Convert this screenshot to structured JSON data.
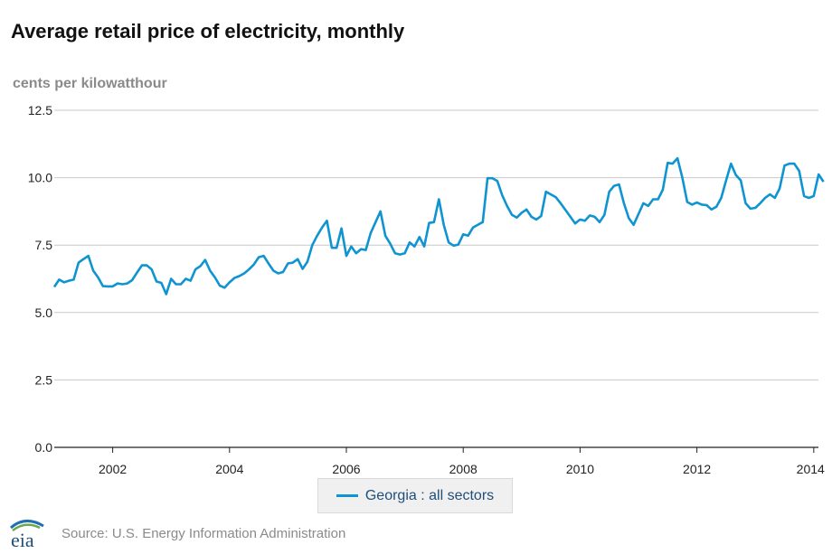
{
  "title": "Average retail price of electricity, monthly",
  "units_label": "cents per kilowatthour",
  "source": "Source: U.S. Energy Information Administration",
  "logo_text": "eia",
  "colors": {
    "series": "#0f94d2",
    "grid": "#c8c8c8",
    "axis": "#222222"
  },
  "chart_data": {
    "type": "line",
    "title": "Average retail price of electricity, monthly",
    "ylabel": "cents per kilowatthour",
    "xlabel": "",
    "ylim": [
      0,
      12.5
    ],
    "xlim": [
      2001.0,
      2014.08
    ],
    "y_ticks": [
      "0.0",
      "2.5",
      "5.0",
      "7.5",
      "10.0",
      "12.5"
    ],
    "y_tick_values": [
      0,
      2.5,
      5,
      7.5,
      10,
      12.5
    ],
    "x_ticks": [
      "2002",
      "2004",
      "2006",
      "2008",
      "2010",
      "2012",
      "2014"
    ],
    "x_tick_values": [
      2002,
      2004,
      2006,
      2008,
      2010,
      2012,
      2014
    ],
    "grid": true,
    "legend_position": "bottom-center",
    "series": [
      {
        "name": "Georgia : all sectors",
        "start": "2001-01",
        "values": [
          5.95,
          6.22,
          6.12,
          6.18,
          6.22,
          6.85,
          6.98,
          7.1,
          6.55,
          6.3,
          5.98,
          5.97,
          5.97,
          6.08,
          6.05,
          6.08,
          6.2,
          6.48,
          6.75,
          6.75,
          6.6,
          6.15,
          6.1,
          5.68,
          6.25,
          6.05,
          6.05,
          6.25,
          6.18,
          6.6,
          6.72,
          6.95,
          6.55,
          6.3,
          6.0,
          5.92,
          6.12,
          6.28,
          6.35,
          6.45,
          6.6,
          6.78,
          7.05,
          7.1,
          6.82,
          6.55,
          6.45,
          6.5,
          6.82,
          6.85,
          6.98,
          6.62,
          6.88,
          7.5,
          7.85,
          8.15,
          8.4,
          7.4,
          7.4,
          8.12,
          7.1,
          7.45,
          7.2,
          7.35,
          7.32,
          7.95,
          8.35,
          8.75,
          7.85,
          7.55,
          7.2,
          7.15,
          7.2,
          7.6,
          7.45,
          7.8,
          7.45,
          8.32,
          8.35,
          9.2,
          8.25,
          7.6,
          7.48,
          7.52,
          7.9,
          7.85,
          8.15,
          8.25,
          8.35,
          9.98,
          9.98,
          9.88,
          9.35,
          8.95,
          8.62,
          8.52,
          8.7,
          8.82,
          8.55,
          8.45,
          8.58,
          9.48,
          9.38,
          9.28,
          9.05,
          8.8,
          8.55,
          8.3,
          8.45,
          8.4,
          8.6,
          8.55,
          8.35,
          8.62,
          9.48,
          9.7,
          9.75,
          9.05,
          8.5,
          8.25,
          8.65,
          9.05,
          8.95,
          9.2,
          9.2,
          9.55,
          10.55,
          10.52,
          10.72,
          10.0,
          9.1,
          9.0,
          9.08,
          9.0,
          8.98,
          8.82,
          8.92,
          9.25,
          9.9,
          10.52,
          10.1,
          9.9,
          9.05,
          8.85,
          8.88,
          9.05,
          9.25,
          9.38,
          9.25,
          9.6,
          10.45,
          10.52,
          10.52,
          10.25,
          9.32,
          9.25,
          9.32,
          10.12,
          9.85
        ]
      }
    ]
  }
}
